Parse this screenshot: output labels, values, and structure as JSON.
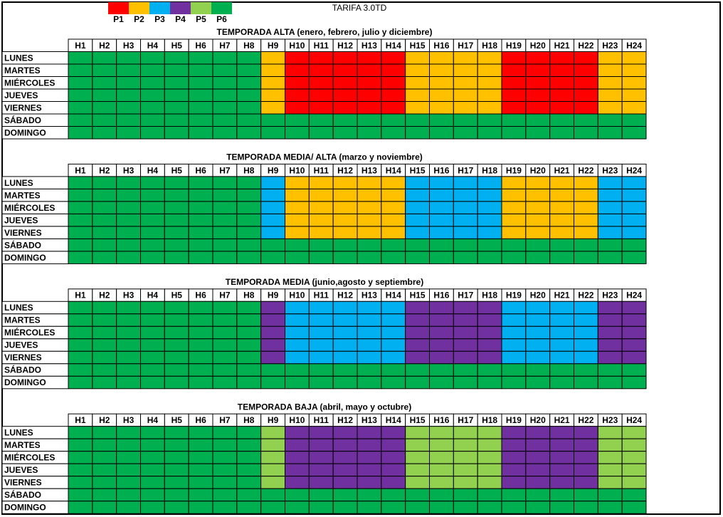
{
  "title": "TARIFA 3.0TD",
  "legend": [
    {
      "label": "P1",
      "color": "#ff0000"
    },
    {
      "label": "P2",
      "color": "#ffc000"
    },
    {
      "label": "P3",
      "color": "#00b0f0"
    },
    {
      "label": "P4",
      "color": "#7030a0"
    },
    {
      "label": "P5",
      "color": "#92d050"
    },
    {
      "label": "P6",
      "color": "#00b050"
    }
  ],
  "hours": [
    "H1",
    "H2",
    "H3",
    "H4",
    "H5",
    "H6",
    "H7",
    "H8",
    "H9",
    "H10",
    "H11",
    "H12",
    "H13",
    "H14",
    "H15",
    "H16",
    "H17",
    "H18",
    "H19",
    "H20",
    "H21",
    "H22",
    "H23",
    "H24"
  ],
  "days": [
    "LUNES",
    "MARTES",
    "MIÉRCOLES",
    "JUEVES",
    "VIERNES",
    "SÁBADO",
    "DOMINGO"
  ],
  "sections": [
    {
      "title": "TEMPORADA ALTA (enero, febrero, julio y diciembre)",
      "rows": [
        [
          "P6",
          "P6",
          "P6",
          "P6",
          "P6",
          "P6",
          "P6",
          "P6",
          "P2",
          "P1",
          "P1",
          "P1",
          "P1",
          "P1",
          "P2",
          "P2",
          "P2",
          "P2",
          "P1",
          "P1",
          "P1",
          "P1",
          "P2",
          "P2"
        ],
        [
          "P6",
          "P6",
          "P6",
          "P6",
          "P6",
          "P6",
          "P6",
          "P6",
          "P2",
          "P1",
          "P1",
          "P1",
          "P1",
          "P1",
          "P2",
          "P2",
          "P2",
          "P2",
          "P1",
          "P1",
          "P1",
          "P1",
          "P2",
          "P2"
        ],
        [
          "P6",
          "P6",
          "P6",
          "P6",
          "P6",
          "P6",
          "P6",
          "P6",
          "P2",
          "P1",
          "P1",
          "P1",
          "P1",
          "P1",
          "P2",
          "P2",
          "P2",
          "P2",
          "P1",
          "P1",
          "P1",
          "P1",
          "P2",
          "P2"
        ],
        [
          "P6",
          "P6",
          "P6",
          "P6",
          "P6",
          "P6",
          "P6",
          "P6",
          "P2",
          "P1",
          "P1",
          "P1",
          "P1",
          "P1",
          "P2",
          "P2",
          "P2",
          "P2",
          "P1",
          "P1",
          "P1",
          "P1",
          "P2",
          "P2"
        ],
        [
          "P6",
          "P6",
          "P6",
          "P6",
          "P6",
          "P6",
          "P6",
          "P6",
          "P2",
          "P1",
          "P1",
          "P1",
          "P1",
          "P1",
          "P2",
          "P2",
          "P2",
          "P2",
          "P1",
          "P1",
          "P1",
          "P1",
          "P2",
          "P2"
        ],
        [
          "P6",
          "P6",
          "P6",
          "P6",
          "P6",
          "P6",
          "P6",
          "P6",
          "P6",
          "P6",
          "P6",
          "P6",
          "P6",
          "P6",
          "P6",
          "P6",
          "P6",
          "P6",
          "P6",
          "P6",
          "P6",
          "P6",
          "P6",
          "P6"
        ],
        [
          "P6",
          "P6",
          "P6",
          "P6",
          "P6",
          "P6",
          "P6",
          "P6",
          "P6",
          "P6",
          "P6",
          "P6",
          "P6",
          "P6",
          "P6",
          "P6",
          "P6",
          "P6",
          "P6",
          "P6",
          "P6",
          "P6",
          "P6",
          "P6"
        ]
      ]
    },
    {
      "title": "TEMPORADA MEDIA/ ALTA (marzo y noviembre)",
      "rows": [
        [
          "P6",
          "P6",
          "P6",
          "P6",
          "P6",
          "P6",
          "P6",
          "P6",
          "P3",
          "P2",
          "P2",
          "P2",
          "P2",
          "P2",
          "P3",
          "P3",
          "P3",
          "P3",
          "P2",
          "P2",
          "P2",
          "P2",
          "P3",
          "P3"
        ],
        [
          "P6",
          "P6",
          "P6",
          "P6",
          "P6",
          "P6",
          "P6",
          "P6",
          "P3",
          "P2",
          "P2",
          "P2",
          "P2",
          "P2",
          "P3",
          "P3",
          "P3",
          "P3",
          "P2",
          "P2",
          "P2",
          "P2",
          "P3",
          "P3"
        ],
        [
          "P6",
          "P6",
          "P6",
          "P6",
          "P6",
          "P6",
          "P6",
          "P6",
          "P3",
          "P2",
          "P2",
          "P2",
          "P2",
          "P2",
          "P3",
          "P3",
          "P3",
          "P3",
          "P2",
          "P2",
          "P2",
          "P2",
          "P3",
          "P3"
        ],
        [
          "P6",
          "P6",
          "P6",
          "P6",
          "P6",
          "P6",
          "P6",
          "P6",
          "P3",
          "P2",
          "P2",
          "P2",
          "P2",
          "P2",
          "P3",
          "P3",
          "P3",
          "P3",
          "P2",
          "P2",
          "P2",
          "P2",
          "P3",
          "P3"
        ],
        [
          "P6",
          "P6",
          "P6",
          "P6",
          "P6",
          "P6",
          "P6",
          "P6",
          "P3",
          "P2",
          "P2",
          "P2",
          "P2",
          "P2",
          "P3",
          "P3",
          "P3",
          "P3",
          "P2",
          "P2",
          "P2",
          "P2",
          "P3",
          "P3"
        ],
        [
          "P6",
          "P6",
          "P6",
          "P6",
          "P6",
          "P6",
          "P6",
          "P6",
          "P6",
          "P6",
          "P6",
          "P6",
          "P6",
          "P6",
          "P6",
          "P6",
          "P6",
          "P6",
          "P6",
          "P6",
          "P6",
          "P6",
          "P6",
          "P6"
        ],
        [
          "P6",
          "P6",
          "P6",
          "P6",
          "P6",
          "P6",
          "P6",
          "P6",
          "P6",
          "P6",
          "P6",
          "P6",
          "P6",
          "P6",
          "P6",
          "P6",
          "P6",
          "P6",
          "P6",
          "P6",
          "P6",
          "P6",
          "P6",
          "P6"
        ]
      ]
    },
    {
      "title": "TEMPORADA MEDIA (junio,agosto y septiembre)",
      "rows": [
        [
          "P6",
          "P6",
          "P6",
          "P6",
          "P6",
          "P6",
          "P6",
          "P6",
          "P4",
          "P3",
          "P3",
          "P3",
          "P3",
          "P3",
          "P4",
          "P4",
          "P4",
          "P4",
          "P3",
          "P3",
          "P3",
          "P3",
          "P4",
          "P4"
        ],
        [
          "P6",
          "P6",
          "P6",
          "P6",
          "P6",
          "P6",
          "P6",
          "P6",
          "P4",
          "P3",
          "P3",
          "P3",
          "P3",
          "P3",
          "P4",
          "P4",
          "P4",
          "P4",
          "P3",
          "P3",
          "P3",
          "P3",
          "P4",
          "P4"
        ],
        [
          "P6",
          "P6",
          "P6",
          "P6",
          "P6",
          "P6",
          "P6",
          "P6",
          "P4",
          "P3",
          "P3",
          "P3",
          "P3",
          "P3",
          "P4",
          "P4",
          "P4",
          "P4",
          "P3",
          "P3",
          "P3",
          "P3",
          "P4",
          "P4"
        ],
        [
          "P6",
          "P6",
          "P6",
          "P6",
          "P6",
          "P6",
          "P6",
          "P6",
          "P4",
          "P3",
          "P3",
          "P3",
          "P3",
          "P3",
          "P4",
          "P4",
          "P4",
          "P4",
          "P3",
          "P3",
          "P3",
          "P3",
          "P4",
          "P4"
        ],
        [
          "P6",
          "P6",
          "P6",
          "P6",
          "P6",
          "P6",
          "P6",
          "P6",
          "P4",
          "P3",
          "P3",
          "P3",
          "P3",
          "P3",
          "P4",
          "P4",
          "P4",
          "P4",
          "P3",
          "P3",
          "P3",
          "P3",
          "P4",
          "P4"
        ],
        [
          "P6",
          "P6",
          "P6",
          "P6",
          "P6",
          "P6",
          "P6",
          "P6",
          "P6",
          "P6",
          "P6",
          "P6",
          "P6",
          "P6",
          "P6",
          "P6",
          "P6",
          "P6",
          "P6",
          "P6",
          "P6",
          "P6",
          "P6",
          "P6"
        ],
        [
          "P6",
          "P6",
          "P6",
          "P6",
          "P6",
          "P6",
          "P6",
          "P6",
          "P6",
          "P6",
          "P6",
          "P6",
          "P6",
          "P6",
          "P6",
          "P6",
          "P6",
          "P6",
          "P6",
          "P6",
          "P6",
          "P6",
          "P6",
          "P6"
        ]
      ]
    },
    {
      "title": "TEMPORADA BAJA (abril, mayo y octubre)",
      "rows": [
        [
          "P6",
          "P6",
          "P6",
          "P6",
          "P6",
          "P6",
          "P6",
          "P6",
          "P5",
          "P4",
          "P4",
          "P4",
          "P4",
          "P4",
          "P5",
          "P5",
          "P5",
          "P5",
          "P4",
          "P4",
          "P4",
          "P4",
          "P5",
          "P5"
        ],
        [
          "P6",
          "P6",
          "P6",
          "P6",
          "P6",
          "P6",
          "P6",
          "P6",
          "P5",
          "P4",
          "P4",
          "P4",
          "P4",
          "P4",
          "P5",
          "P5",
          "P5",
          "P5",
          "P4",
          "P4",
          "P4",
          "P4",
          "P5",
          "P5"
        ],
        [
          "P6",
          "P6",
          "P6",
          "P6",
          "P6",
          "P6",
          "P6",
          "P6",
          "P5",
          "P4",
          "P4",
          "P4",
          "P4",
          "P4",
          "P5",
          "P5",
          "P5",
          "P5",
          "P4",
          "P4",
          "P4",
          "P4",
          "P5",
          "P5"
        ],
        [
          "P6",
          "P6",
          "P6",
          "P6",
          "P6",
          "P6",
          "P6",
          "P6",
          "P5",
          "P4",
          "P4",
          "P4",
          "P4",
          "P4",
          "P5",
          "P5",
          "P5",
          "P5",
          "P4",
          "P4",
          "P4",
          "P4",
          "P5",
          "P5"
        ],
        [
          "P6",
          "P6",
          "P6",
          "P6",
          "P6",
          "P6",
          "P6",
          "P6",
          "P5",
          "P4",
          "P4",
          "P4",
          "P4",
          "P4",
          "P5",
          "P5",
          "P5",
          "P5",
          "P4",
          "P4",
          "P4",
          "P4",
          "P5",
          "P5"
        ],
        [
          "P6",
          "P6",
          "P6",
          "P6",
          "P6",
          "P6",
          "P6",
          "P6",
          "P6",
          "P6",
          "P6",
          "P6",
          "P6",
          "P6",
          "P6",
          "P6",
          "P6",
          "P6",
          "P6",
          "P6",
          "P6",
          "P6",
          "P6",
          "P6"
        ],
        [
          "P6",
          "P6",
          "P6",
          "P6",
          "P6",
          "P6",
          "P6",
          "P6",
          "P6",
          "P6",
          "P6",
          "P6",
          "P6",
          "P6",
          "P6",
          "P6",
          "P6",
          "P6",
          "P6",
          "P6",
          "P6",
          "P6",
          "P6",
          "P6"
        ]
      ]
    }
  ]
}
